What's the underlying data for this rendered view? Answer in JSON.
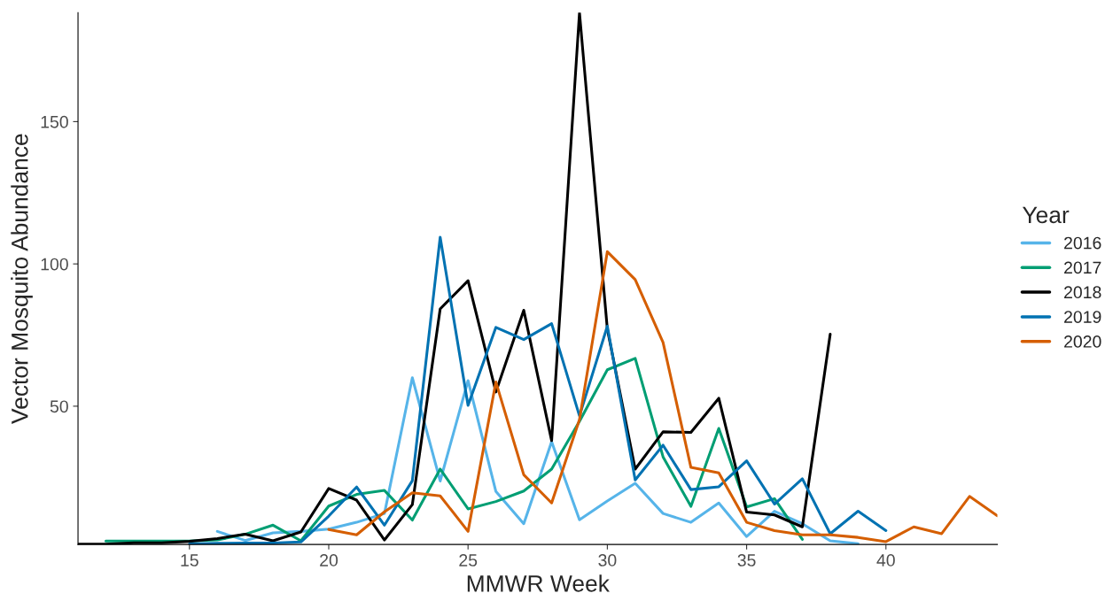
{
  "chart_data": {
    "type": "line",
    "xlabel": "MMWR Week",
    "ylabel": "Vector Mosquito Abundance",
    "legend_title": "Year",
    "legend": "right",
    "xlim": [
      11,
      44
    ],
    "xticks": [
      15,
      20,
      25,
      30,
      35,
      40
    ],
    "ylim": [
      1.4,
      188.3
    ],
    "yticks": [
      50,
      100,
      150
    ],
    "grid": false,
    "line_style": "solid",
    "series": [
      {
        "name": "2016",
        "color": "#56b4e9",
        "x": [
          16,
          17,
          18,
          19,
          20,
          21,
          22,
          23,
          24,
          25,
          26,
          27,
          28,
          29,
          30,
          31,
          32,
          33,
          34,
          35,
          36,
          37,
          38,
          39
        ],
        "values": [
          6,
          2.8,
          5.5,
          6,
          6.8,
          9.2,
          12.3,
          60,
          23.7,
          59,
          20,
          8.7,
          37.5,
          10.1,
          16.7,
          22.9,
          12.3,
          9.2,
          16,
          4.2,
          13.1,
          8.7,
          2.7,
          1.7
        ]
      },
      {
        "name": "2017",
        "color": "#009e73",
        "x": [
          12,
          13,
          14,
          15,
          16,
          17,
          18,
          19,
          20,
          21,
          22,
          23,
          24,
          25,
          26,
          27,
          28,
          29,
          30,
          31,
          32,
          33,
          34,
          35,
          36,
          37
        ],
        "values": [
          2.6,
          2.6,
          2.6,
          2.6,
          3,
          5,
          8.2,
          2.7,
          14.9,
          19,
          20.4,
          10,
          27.9,
          13.9,
          16.5,
          20.2,
          27.9,
          44.7,
          62.8,
          66.8,
          32.2,
          14.8,
          42.2,
          14.6,
          17.5,
          3.2
        ]
      },
      {
        "name": "2018",
        "color": "#000000",
        "x": [
          11,
          12,
          13,
          14,
          15,
          16,
          17,
          18,
          19,
          20,
          21,
          22,
          23,
          24,
          25,
          26,
          27,
          28,
          29,
          30,
          31,
          32,
          33,
          34,
          35,
          36,
          37,
          38
        ],
        "values": [
          1.5,
          1.5,
          2,
          2,
          2.5,
          3.5,
          5,
          2.7,
          5.8,
          21.1,
          17,
          3,
          15.4,
          84.2,
          94.1,
          55,
          83.7,
          37.9,
          188.3,
          77.1,
          27.9,
          41,
          40.8,
          52.8,
          12.8,
          11.8,
          7.6,
          75.3
        ]
      },
      {
        "name": "2019",
        "color": "#0072b2",
        "x": [
          15,
          16,
          17,
          18,
          19,
          20,
          21,
          22,
          23,
          24,
          25,
          26,
          27,
          28,
          29,
          30,
          31,
          32,
          33,
          34,
          35,
          36,
          37,
          38,
          39,
          40
        ],
        "values": [
          1.6,
          1.8,
          1.9,
          1.9,
          2.3,
          11.4,
          21.6,
          8.2,
          23.8,
          109.4,
          50.3,
          77.7,
          73.4,
          79,
          46.6,
          78.1,
          24.1,
          36.3,
          20.7,
          21.7,
          30.8,
          15.6,
          24.5,
          5.2,
          13.1,
          6.3
        ]
      },
      {
        "name": "2020",
        "color": "#d55e00",
        "x": [
          20,
          21,
          22,
          23,
          24,
          25,
          26,
          27,
          28,
          29,
          30,
          31,
          32,
          33,
          34,
          35,
          36,
          37,
          38,
          39,
          40,
          41,
          42,
          43,
          44
        ],
        "values": [
          6.7,
          4.8,
          12.9,
          19.6,
          18.5,
          6,
          58.5,
          25.9,
          16,
          45.3,
          104.3,
          94.5,
          72.4,
          28.5,
          26.6,
          9.2,
          6.3,
          4.8,
          4.8,
          3.9,
          2.4,
          7.6,
          5.2,
          18.3,
          11.5
        ]
      }
    ]
  }
}
